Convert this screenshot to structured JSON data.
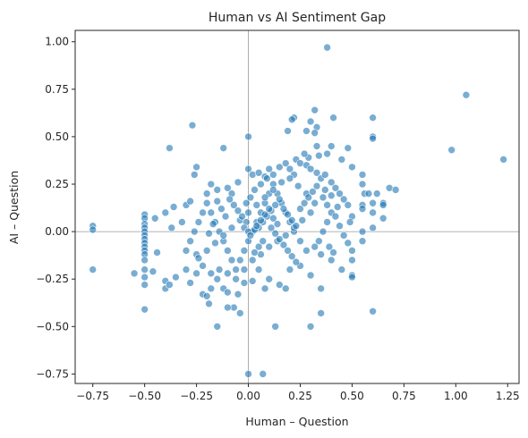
{
  "chart_data": {
    "type": "scatter",
    "title": "Human vs AI Sentiment Gap",
    "xlabel": "Human – Question",
    "ylabel": "AI – Question",
    "xlim": [
      -0.835,
      1.305
    ],
    "ylim": [
      -0.8,
      1.06
    ],
    "xticks": [
      -0.75,
      -0.5,
      -0.25,
      0.0,
      0.25,
      0.5,
      0.75,
      1.0,
      1.25
    ],
    "xtick_labels": [
      "−0.75",
      "−0.50",
      "−0.25",
      "0.00",
      "0.25",
      "0.50",
      "0.75",
      "1.00",
      "1.25"
    ],
    "yticks": [
      -0.75,
      -0.5,
      -0.25,
      0.0,
      0.25,
      0.5,
      0.75,
      1.0
    ],
    "ytick_labels": [
      "−0.75",
      "−0.50",
      "−0.25",
      "0.00",
      "0.25",
      "0.50",
      "0.75",
      "1.00"
    ],
    "reference_lines": {
      "x": 0,
      "y": 0,
      "color": "#999999"
    },
    "grid": false,
    "legend": "none",
    "marker_color": "#1f77b4",
    "marker_opacity": 0.6,
    "points": [
      [
        0.38,
        0.97
      ],
      [
        1.05,
        0.72
      ],
      [
        1.23,
        0.38
      ],
      [
        0.98,
        0.43
      ],
      [
        0.6,
        0.6
      ],
      [
        0.32,
        0.64
      ],
      [
        0.6,
        0.5
      ],
      [
        0.6,
        0.49
      ],
      [
        0.41,
        0.6
      ],
      [
        0.22,
        0.6
      ],
      [
        0.21,
        0.59
      ],
      [
        0.3,
        0.58
      ],
      [
        0.28,
        0.53
      ],
      [
        0.33,
        0.55
      ],
      [
        0.32,
        0.52
      ],
      [
        0.19,
        0.53
      ],
      [
        0.0,
        0.5
      ],
      [
        -0.27,
        0.56
      ],
      [
        -0.38,
        0.44
      ],
      [
        -0.12,
        0.44
      ],
      [
        0.33,
        0.45
      ],
      [
        0.4,
        0.45
      ],
      [
        0.48,
        0.44
      ],
      [
        0.45,
        0.38
      ],
      [
        0.5,
        0.34
      ],
      [
        0.38,
        0.41
      ],
      [
        0.34,
        0.4
      ],
      [
        0.23,
        0.38
      ],
      [
        0.29,
        0.39
      ],
      [
        0.27,
        0.41
      ],
      [
        -0.25,
        0.34
      ],
      [
        -0.26,
        0.3
      ],
      [
        0.55,
        0.25
      ],
      [
        0.56,
        0.2
      ],
      [
        0.55,
        0.3
      ],
      [
        0.58,
        0.2
      ],
      [
        0.62,
        0.2
      ],
      [
        0.68,
        0.23
      ],
      [
        0.71,
        0.22
      ],
      [
        0.55,
        0.14
      ],
      [
        0.6,
        0.15
      ],
      [
        0.65,
        0.15
      ],
      [
        0.65,
        0.14
      ],
      [
        0.6,
        0.1
      ],
      [
        0.5,
        0.08
      ],
      [
        0.55,
        0.12
      ],
      [
        0.48,
        0.14
      ],
      [
        0.49,
        0.05
      ],
      [
        0.65,
        0.07
      ],
      [
        0.6,
        0.02
      ],
      [
        0.55,
        0.0
      ],
      [
        0.55,
        -0.05
      ],
      [
        0.5,
        -0.1
      ],
      [
        0.5,
        -0.15
      ],
      [
        0.5,
        -0.23
      ],
      [
        0.5,
        -0.24
      ],
      [
        0.6,
        -0.42
      ],
      [
        0.35,
        -0.43
      ],
      [
        0.3,
        -0.5
      ],
      [
        0.13,
        -0.5
      ],
      [
        -0.15,
        -0.5
      ],
      [
        -0.07,
        -0.4
      ],
      [
        -0.04,
        -0.43
      ],
      [
        -0.1,
        -0.4
      ],
      [
        -0.19,
        -0.38
      ],
      [
        0.0,
        -0.75
      ],
      [
        0.07,
        -0.75
      ],
      [
        -0.75,
        0.03
      ],
      [
        -0.75,
        0.01
      ],
      [
        -0.75,
        -0.2
      ],
      [
        -0.5,
        0.09
      ],
      [
        -0.5,
        0.07
      ],
      [
        -0.5,
        0.04
      ],
      [
        -0.5,
        0.02
      ],
      [
        -0.5,
        0.0
      ],
      [
        -0.5,
        -0.02
      ],
      [
        -0.5,
        -0.04
      ],
      [
        -0.5,
        -0.06
      ],
      [
        -0.5,
        -0.08
      ],
      [
        -0.5,
        -0.1
      ],
      [
        -0.5,
        -0.12
      ],
      [
        -0.5,
        -0.15
      ],
      [
        -0.5,
        -0.2
      ],
      [
        -0.5,
        -0.24
      ],
      [
        -0.5,
        -0.28
      ],
      [
        -0.5,
        -0.41
      ],
      [
        -0.55,
        -0.22
      ],
      [
        -0.45,
        0.07
      ],
      [
        -0.44,
        -0.11
      ],
      [
        -0.46,
        -0.21
      ],
      [
        -0.4,
        -0.3
      ],
      [
        -0.4,
        -0.26
      ],
      [
        -0.38,
        -0.28
      ],
      [
        -0.35,
        -0.24
      ],
      [
        -0.37,
        0.02
      ],
      [
        -0.4,
        0.1
      ],
      [
        -0.36,
        0.13
      ],
      [
        -0.3,
        0.14
      ],
      [
        -0.28,
        0.16
      ],
      [
        -0.32,
        0.05
      ],
      [
        -0.3,
        -0.1
      ],
      [
        -0.3,
        -0.2
      ],
      [
        -0.28,
        -0.27
      ],
      [
        -0.25,
        -0.22
      ],
      [
        -0.22,
        -0.33
      ],
      [
        -0.2,
        -0.34
      ],
      [
        -0.18,
        -0.3
      ],
      [
        -0.15,
        -0.25
      ],
      [
        -0.12,
        -0.3
      ],
      [
        -0.1,
        -0.32
      ],
      [
        -0.05,
        -0.33
      ],
      [
        -0.02,
        -0.27
      ],
      [
        0.02,
        -0.26
      ],
      [
        0.05,
        -0.2
      ],
      [
        0.08,
        -0.3
      ],
      [
        0.1,
        -0.25
      ],
      [
        0.15,
        -0.28
      ],
      [
        0.18,
        -0.3
      ],
      [
        0.2,
        -0.2
      ],
      [
        0.25,
        -0.18
      ],
      [
        0.3,
        -0.23
      ],
      [
        0.35,
        -0.12
      ],
      [
        0.4,
        -0.15
      ],
      [
        0.35,
        -0.3
      ],
      [
        0.45,
        -0.2
      ],
      [
        -0.2,
        0.2
      ],
      [
        -0.15,
        0.22
      ],
      [
        -0.18,
        0.25
      ],
      [
        -0.1,
        0.23
      ],
      [
        -0.05,
        0.26
      ],
      [
        -0.08,
        0.2
      ],
      [
        0.0,
        0.33
      ],
      [
        0.02,
        0.3
      ],
      [
        0.05,
        0.31
      ],
      [
        0.08,
        0.29
      ],
      [
        0.1,
        0.33
      ],
      [
        0.12,
        0.3
      ],
      [
        0.15,
        0.34
      ],
      [
        0.18,
        0.36
      ],
      [
        0.2,
        0.33
      ],
      [
        0.22,
        0.3
      ],
      [
        0.25,
        0.36
      ],
      [
        0.28,
        0.35
      ],
      [
        0.3,
        0.33
      ],
      [
        0.33,
        0.31
      ],
      [
        0.35,
        0.28
      ],
      [
        0.37,
        0.3
      ],
      [
        0.4,
        0.26
      ],
      [
        0.42,
        0.23
      ],
      [
        0.44,
        0.2
      ],
      [
        0.46,
        0.17
      ],
      [
        0.43,
        0.13
      ],
      [
        0.4,
        0.1
      ],
      [
        0.38,
        0.05
      ],
      [
        0.36,
        0.0
      ],
      [
        0.34,
        -0.05
      ],
      [
        0.32,
        -0.08
      ],
      [
        0.28,
        -0.1
      ],
      [
        0.25,
        -0.05
      ],
      [
        0.22,
        0.0
      ],
      [
        0.2,
        0.05
      ],
      [
        0.18,
        0.1
      ],
      [
        0.16,
        0.15
      ],
      [
        0.14,
        0.2
      ],
      [
        0.12,
        0.25
      ],
      [
        0.1,
        0.2
      ],
      [
        0.08,
        0.15
      ],
      [
        0.06,
        0.1
      ],
      [
        0.04,
        0.05
      ],
      [
        0.02,
        0.0
      ],
      [
        0.0,
        -0.05
      ],
      [
        -0.02,
        -0.1
      ],
      [
        -0.04,
        -0.15
      ],
      [
        -0.06,
        -0.2
      ],
      [
        -0.08,
        -0.15
      ],
      [
        -0.1,
        -0.1
      ],
      [
        -0.12,
        -0.05
      ],
      [
        -0.14,
        0.0
      ],
      [
        -0.16,
        0.05
      ],
      [
        -0.18,
        0.1
      ],
      [
        -0.2,
        0.15
      ],
      [
        -0.22,
        0.1
      ],
      [
        -0.24,
        0.05
      ],
      [
        -0.26,
        0.0
      ],
      [
        -0.28,
        -0.05
      ],
      [
        -0.25,
        -0.12
      ],
      [
        -0.22,
        -0.18
      ],
      [
        -0.18,
        -0.22
      ],
      [
        -0.14,
        -0.2
      ],
      [
        -0.1,
        -0.22
      ],
      [
        -0.06,
        -0.25
      ],
      [
        -0.02,
        -0.2
      ],
      [
        0.02,
        -0.15
      ],
      [
        0.06,
        -0.12
      ],
      [
        0.1,
        -0.08
      ],
      [
        0.14,
        -0.05
      ],
      [
        0.18,
        -0.02
      ],
      [
        0.22,
        0.02
      ],
      [
        0.26,
        0.06
      ],
      [
        0.3,
        0.1
      ],
      [
        0.32,
        0.15
      ],
      [
        0.28,
        0.2
      ],
      [
        0.24,
        0.24
      ],
      [
        0.2,
        0.28
      ],
      [
        0.16,
        0.26
      ],
      [
        0.12,
        0.22
      ],
      [
        0.08,
        0.18
      ],
      [
        0.04,
        0.14
      ],
      [
        0.0,
        0.1
      ],
      [
        -0.04,
        0.06
      ],
      [
        -0.08,
        0.02
      ],
      [
        -0.12,
        -0.02
      ],
      [
        -0.16,
        -0.06
      ],
      [
        -0.2,
        -0.1
      ],
      [
        -0.24,
        -0.14
      ],
      [
        0.05,
        0.02
      ],
      [
        0.07,
        0.05
      ],
      [
        0.09,
        0.08
      ],
      [
        0.11,
        0.11
      ],
      [
        0.13,
        0.14
      ],
      [
        0.15,
        0.17
      ],
      [
        0.17,
        0.12
      ],
      [
        0.19,
        0.09
      ],
      [
        0.21,
        0.06
      ],
      [
        0.23,
        0.03
      ],
      [
        0.25,
        0.12
      ],
      [
        0.27,
        0.15
      ],
      [
        0.29,
        0.18
      ],
      [
        0.31,
        0.21
      ],
      [
        0.33,
        0.24
      ],
      [
        -0.01,
        0.05
      ],
      [
        -0.03,
        0.08
      ],
      [
        -0.05,
        0.11
      ],
      [
        -0.07,
        0.14
      ],
      [
        -0.09,
        0.17
      ],
      [
        0.03,
        0.22
      ],
      [
        0.06,
        0.25
      ],
      [
        0.09,
        0.28
      ],
      [
        0.01,
        0.18
      ],
      [
        -0.01,
        0.15
      ],
      [
        0.11,
        0.02
      ],
      [
        0.13,
        -0.01
      ],
      [
        0.15,
        -0.04
      ],
      [
        0.17,
        -0.07
      ],
      [
        0.19,
        -0.1
      ],
      [
        0.21,
        -0.13
      ],
      [
        0.23,
        -0.16
      ],
      [
        0.07,
        -0.05
      ],
      [
        0.05,
        -0.08
      ],
      [
        0.03,
        -0.11
      ],
      [
        -0.11,
        0.08
      ],
      [
        -0.13,
        0.12
      ],
      [
        -0.15,
        0.16
      ],
      [
        -0.17,
        0.04
      ],
      [
        -0.19,
        -0.01
      ],
      [
        0.36,
        0.18
      ],
      [
        0.38,
        0.14
      ],
      [
        0.4,
        0.19
      ],
      [
        0.42,
        0.08
      ],
      [
        0.44,
        0.03
      ],
      [
        0.46,
        -0.02
      ],
      [
        0.48,
        -0.06
      ],
      [
        0.39,
        -0.08
      ],
      [
        0.41,
        -0.11
      ],
      [
        0.37,
        0.22
      ],
      [
        -0.02,
        0.02
      ],
      [
        0.0,
        0.0
      ],
      [
        0.01,
        -0.02
      ],
      [
        0.03,
        0.01
      ],
      [
        0.04,
        0.03
      ],
      [
        0.06,
        0.06
      ],
      [
        0.08,
        0.09
      ],
      [
        0.1,
        0.12
      ],
      [
        0.12,
        0.07
      ],
      [
        0.14,
        0.04
      ]
    ]
  }
}
